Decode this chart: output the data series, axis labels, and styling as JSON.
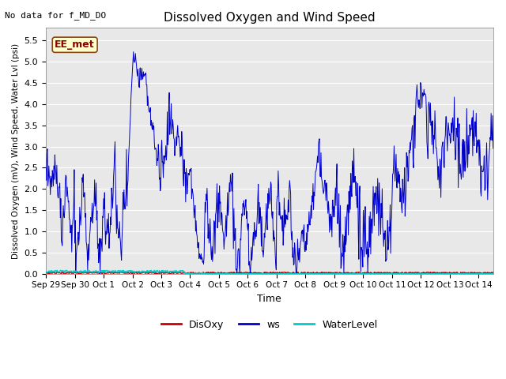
{
  "title": "Dissolved Oxygen and Wind Speed",
  "top_left_text": "No data for f_MD_DO",
  "annotation_text": "EE_met",
  "xlabel": "Time",
  "ylabel": "Dissolved Oxygen (mV), Wind Speed, Water Lvl (psi)",
  "ylim": [
    0,
    5.8
  ],
  "yticks": [
    0.0,
    0.5,
    1.0,
    1.5,
    2.0,
    2.5,
    3.0,
    3.5,
    4.0,
    4.5,
    5.0,
    5.5
  ],
  "bg_color": "#e8e8e8",
  "line_color_ws": "#0000cc",
  "line_color_disoxy": "#cc0000",
  "line_color_waterlevel": "#00cccc",
  "legend_labels": [
    "DisOxy",
    "ws",
    "WaterLevel"
  ],
  "legend_colors": [
    "#cc0000",
    "#0000cc",
    "#00cccc"
  ],
  "xlim": [
    0,
    15.5
  ],
  "x_tick_positions": [
    0,
    1,
    2,
    3,
    4,
    5,
    6,
    7,
    8,
    9,
    10,
    11,
    12,
    13,
    14,
    15
  ],
  "x_tick_labels": [
    "Sep 29",
    "Sep 30",
    "Oct 1",
    "Oct 2",
    "Oct 3",
    "Oct 4",
    "Oct 5",
    "Oct 6",
    "Oct 7",
    "Oct 8",
    "Oct 9",
    "Oct 10",
    "Oct 11",
    "Oct 12",
    "Oct 13",
    "Oct 14"
  ]
}
